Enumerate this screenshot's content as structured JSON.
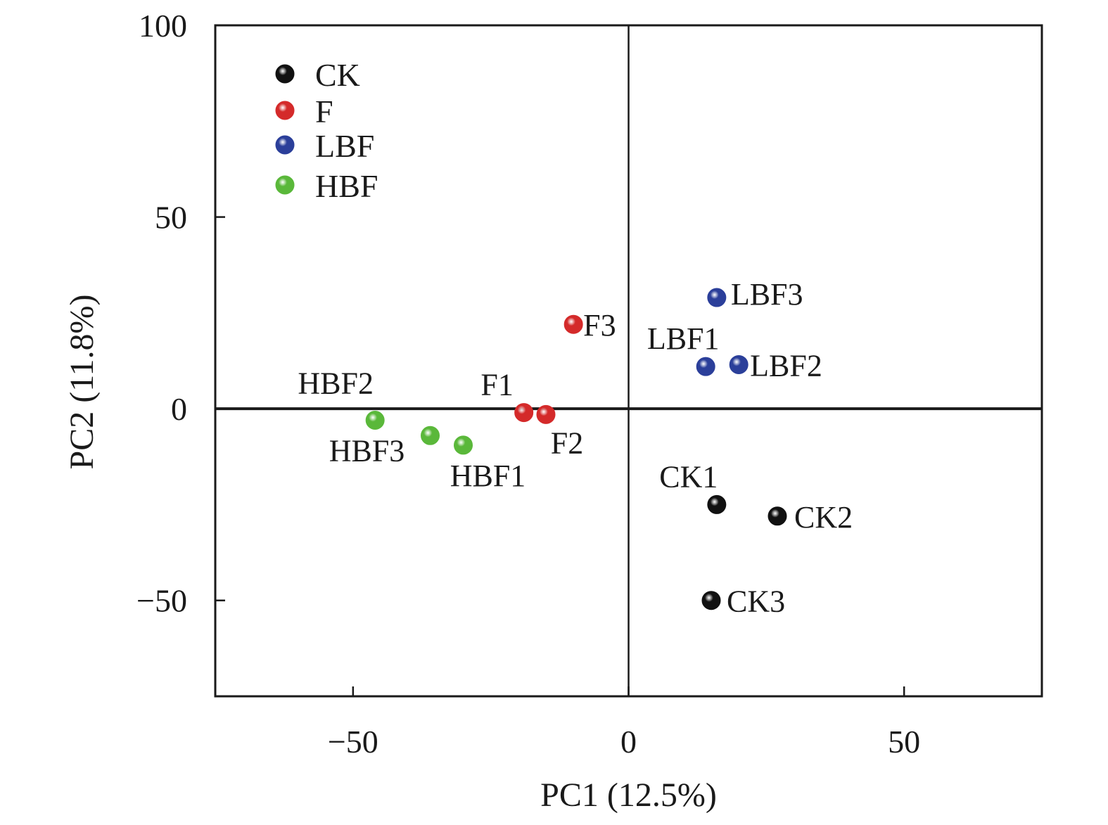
{
  "chart_data": {
    "type": "scatter",
    "title": "",
    "xlabel": "PC1 (12.5%)",
    "ylabel": "PC2 (11.8%)",
    "xlim": [
      -75,
      75
    ],
    "ylim": [
      -75,
      100
    ],
    "xticks": [
      -50,
      0,
      50
    ],
    "yticks": [
      -50,
      0,
      50,
      100
    ],
    "xtick_labels": [
      "−50",
      "0",
      "50"
    ],
    "ytick_labels": [
      "−50",
      "0",
      "50",
      "100"
    ],
    "grid": false,
    "reference_lines": {
      "x": 0,
      "y": 0
    },
    "legend_position": "top-left",
    "series": [
      {
        "name": "CK",
        "color": "#111111",
        "points": [
          {
            "label": "CK1",
            "x": 16,
            "y": -25
          },
          {
            "label": "CK2",
            "x": 27,
            "y": -28
          },
          {
            "label": "CK3",
            "x": 15,
            "y": -50
          }
        ]
      },
      {
        "name": "F",
        "color": "#d42a2a",
        "points": [
          {
            "label": "F1",
            "x": -19,
            "y": -1
          },
          {
            "label": "F2",
            "x": -15,
            "y": -1.5
          },
          {
            "label": "F3",
            "x": -10,
            "y": 22
          }
        ]
      },
      {
        "name": "LBF",
        "color": "#2b3f9a",
        "points": [
          {
            "label": "LBF1",
            "x": 14,
            "y": 11
          },
          {
            "label": "LBF2",
            "x": 20,
            "y": 11.5
          },
          {
            "label": "LBF3",
            "x": 16,
            "y": 29
          }
        ]
      },
      {
        "name": "HBF",
        "color": "#5ab83a",
        "points": [
          {
            "label": "HBF1",
            "x": -30,
            "y": -9.5
          },
          {
            "label": "HBF2",
            "x": -46,
            "y": -3
          },
          {
            "label": "HBF3",
            "x": -36,
            "y": -7
          }
        ]
      }
    ]
  }
}
